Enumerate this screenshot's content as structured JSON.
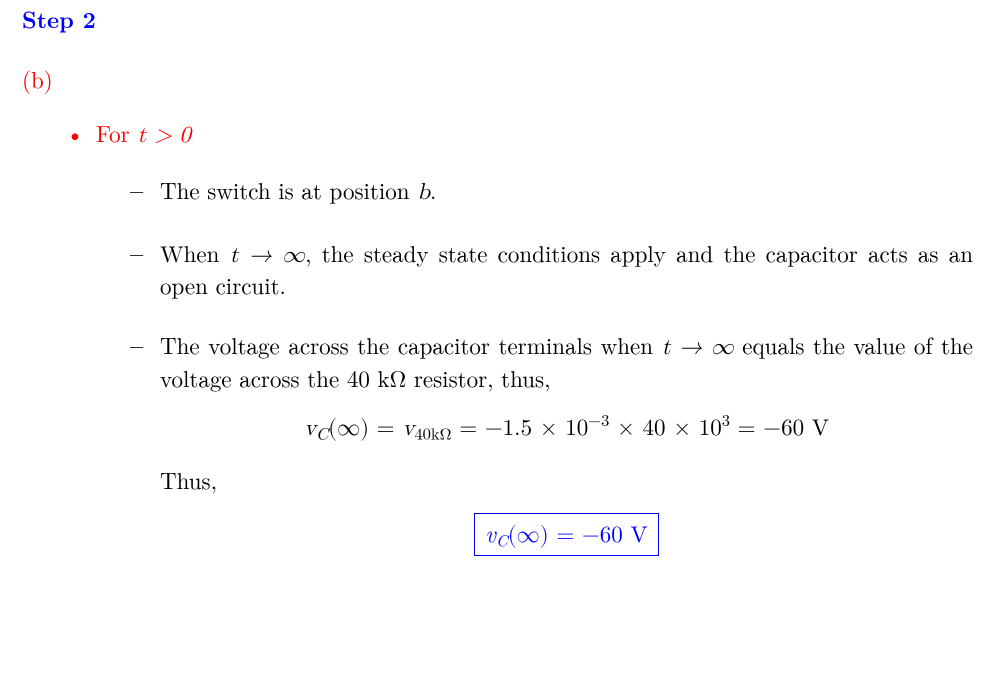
{
  "stepLabel": "Step 2",
  "partLabel": "(b)",
  "bulletHeadPre": "For ",
  "bulletHeadCond": "t > 0",
  "dash1": "The switch is at position ",
  "dash1var": "b",
  "dash1end": ".",
  "dash2a": "When ",
  "dash2cond": "t → ∞",
  "dash2b": ", the steady state conditions apply and the capacitor acts as an open circuit.",
  "dash3a": "The voltage across the capacitor terminals when ",
  "dash3cond": "t → ∞",
  "dash3b": " equals the value of the voltage across the 40 kΩ resistor, thus,",
  "eq1_lhs": "v",
  "eq1_lhs_sub": "C",
  "eq1_lhs_arg": "(∞)",
  "eq1_eq1": " = ",
  "eq1_m1": "v",
  "eq1_m1_sub": "40kΩ",
  "eq1_eq2": " = −1.5 × 10",
  "eq1_exp1": "−3",
  "eq1_mid2": " × 40 × 10",
  "eq1_exp2": "3",
  "eq1_rhs": " = −60 V",
  "thus": "Thus,",
  "box_v": "v",
  "box_sub": "C",
  "box_arg": "(∞) = −60 ",
  "box_unit": "V",
  "colors": {
    "step": "#0000ff",
    "red": "#ff0000",
    "text": "#000000",
    "box_border": "#0000ff"
  }
}
